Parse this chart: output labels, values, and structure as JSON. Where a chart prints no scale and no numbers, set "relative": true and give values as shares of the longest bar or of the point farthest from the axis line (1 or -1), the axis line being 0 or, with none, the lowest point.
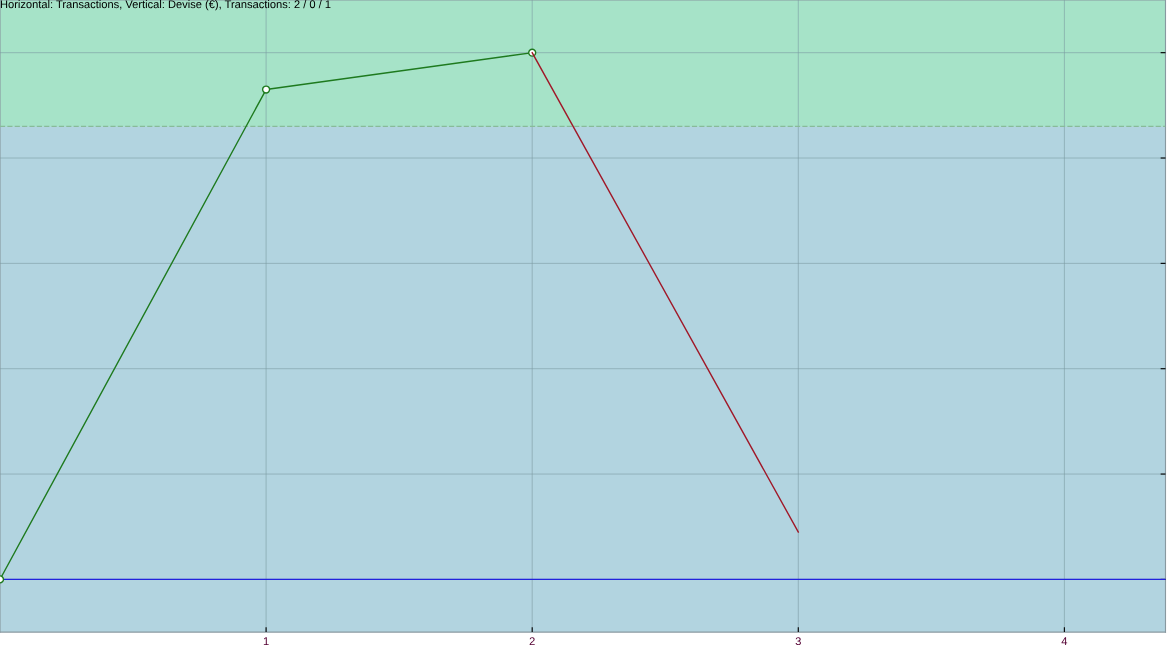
{
  "chart_data": {
    "type": "line",
    "title": "Horizontal: Transactions, Vertical: Devise (€), Transactions: 2 / 0 / 1",
    "relative": true,
    "xlim": [
      0,
      4.38
    ],
    "xticks": [
      1,
      2,
      3,
      4
    ],
    "grid": true,
    "tick_labels": "x",
    "marker": "circle",
    "series": [
      {
        "color": "#1e7a1e",
        "x": [
          0,
          1,
          2
        ],
        "values": [
          0.0,
          0.93,
          1.0
        ]
      },
      {
        "color": "#a01828",
        "x": [
          2,
          3
        ],
        "values": [
          1.0,
          0.09
        ],
        "marker": "none"
      }
    ],
    "ref_lines": [
      {
        "axis": "y",
        "value": 0,
        "label": null,
        "color": "#2222dd",
        "line_style": "solid"
      },
      {
        "axis": "y",
        "value": 0.86,
        "label": null,
        "color": "#88bb99",
        "line_style": "dashed"
      }
    ],
    "bands": [
      {
        "axis": "y",
        "from": 0.86,
        "to": 1.1,
        "label": null,
        "color": "#a6e3c8"
      }
    ]
  }
}
